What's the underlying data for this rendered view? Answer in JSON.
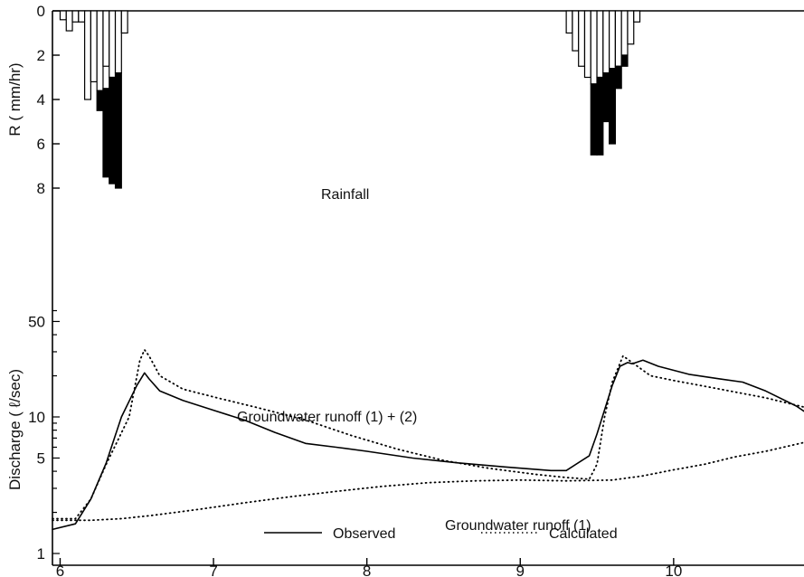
{
  "chart_data": [
    {
      "type": "bar",
      "panel": "rainfall",
      "ylabel": "R ( mm/hr)",
      "ylim": [
        0,
        8
      ],
      "y_inverted": true,
      "yticks": [
        0,
        2,
        4,
        6,
        8
      ],
      "annotation": "Rainfall",
      "bar_width_days": 0.04,
      "series": [
        {
          "style": "open",
          "bars": [
            {
              "x": 6.02,
              "value": 0.4
            },
            {
              "x": 6.06,
              "value": 0.9
            },
            {
              "x": 6.1,
              "value": 0.5
            },
            {
              "x": 6.14,
              "value": 0.5
            },
            {
              "x": 6.18,
              "value": 4.0
            },
            {
              "x": 6.22,
              "value": 3.2
            },
            {
              "x": 6.26,
              "value": 3.6
            },
            {
              "x": 6.3,
              "value": 2.5
            },
            {
              "x": 6.34,
              "value": 3.0
            },
            {
              "x": 6.38,
              "value": 2.8
            },
            {
              "x": 6.42,
              "value": 1.0
            },
            {
              "x": 9.32,
              "value": 1.0
            },
            {
              "x": 9.36,
              "value": 1.8
            },
            {
              "x": 9.4,
              "value": 2.5
            },
            {
              "x": 9.44,
              "value": 3.0
            },
            {
              "x": 9.48,
              "value": 3.3
            },
            {
              "x": 9.52,
              "value": 3.0
            },
            {
              "x": 9.56,
              "value": 2.8
            },
            {
              "x": 9.6,
              "value": 2.6
            },
            {
              "x": 9.64,
              "value": 2.5
            },
            {
              "x": 9.68,
              "value": 2.0
            },
            {
              "x": 9.72,
              "value": 1.5
            },
            {
              "x": 9.76,
              "value": 0.5
            }
          ]
        },
        {
          "style": "filled",
          "bars": [
            {
              "x": 6.26,
              "base": 3.6,
              "value": 4.5
            },
            {
              "x": 6.3,
              "base": 3.5,
              "value": 7.5
            },
            {
              "x": 6.34,
              "base": 3.0,
              "value": 7.8
            },
            {
              "x": 6.38,
              "base": 2.8,
              "value": 8.0
            },
            {
              "x": 9.48,
              "base": 3.3,
              "value": 6.5
            },
            {
              "x": 9.52,
              "base": 3.0,
              "value": 6.5
            },
            {
              "x": 9.56,
              "base": 2.8,
              "value": 5.0
            },
            {
              "x": 9.6,
              "base": 2.6,
              "value": 6.0
            },
            {
              "x": 9.64,
              "base": 2.5,
              "value": 3.5
            },
            {
              "x": 9.68,
              "base": 2.0,
              "value": 2.5
            }
          ]
        }
      ]
    },
    {
      "type": "line",
      "panel": "discharge",
      "ylabel": "Discharge  ( ℓ/sec)",
      "yscale": "log",
      "ylim": [
        1,
        100
      ],
      "yticks": [
        1,
        5,
        10,
        50
      ],
      "xlim": [
        5.95,
        10.85
      ],
      "xticks": [
        6,
        7,
        8,
        9,
        10
      ],
      "annotations": [
        "Groundwater runoff (1) + (2)",
        "Groundwater runoff (1)"
      ],
      "legend": {
        "position": "bottom-center",
        "entries": [
          "Observed",
          "Calculated"
        ]
      },
      "series": [
        {
          "name": "Observed",
          "style": "solid",
          "points": [
            [
              5.95,
              1.5
            ],
            [
              6.1,
              1.65
            ],
            [
              6.2,
              2.5
            ],
            [
              6.3,
              4.6
            ],
            [
              6.4,
              10
            ],
            [
              6.5,
              17
            ],
            [
              6.55,
              21
            ],
            [
              6.58,
              19
            ],
            [
              6.65,
              15.5
            ],
            [
              6.8,
              13.2
            ],
            [
              7.0,
              11.2
            ],
            [
              7.2,
              9.5
            ],
            [
              7.4,
              7.7
            ],
            [
              7.6,
              6.4
            ],
            [
              7.8,
              6.0
            ],
            [
              8.0,
              5.6
            ],
            [
              8.3,
              5.0
            ],
            [
              8.6,
              4.6
            ],
            [
              8.9,
              4.3
            ],
            [
              9.2,
              4.05
            ],
            [
              9.3,
              4.05
            ],
            [
              9.45,
              5.2
            ],
            [
              9.5,
              7.5
            ],
            [
              9.6,
              17
            ],
            [
              9.65,
              23.5
            ],
            [
              9.7,
              25
            ],
            [
              9.73,
              24.5
            ],
            [
              9.8,
              26
            ],
            [
              9.9,
              23.5
            ],
            [
              10.1,
              20.5
            ],
            [
              10.3,
              19
            ],
            [
              10.45,
              18
            ],
            [
              10.6,
              15.5
            ],
            [
              10.8,
              12
            ],
            [
              10.85,
              11
            ]
          ]
        },
        {
          "name": "Calculated",
          "label": "Groundwater runoff (1) + (2)",
          "style": "dotted",
          "points": [
            [
              5.95,
              1.8
            ],
            [
              6.1,
              1.8
            ],
            [
              6.2,
              2.5
            ],
            [
              6.3,
              4.5
            ],
            [
              6.45,
              10
            ],
            [
              6.52,
              26
            ],
            [
              6.55,
              31
            ],
            [
              6.58,
              28
            ],
            [
              6.65,
              20
            ],
            [
              6.8,
              16
            ],
            [
              7.0,
              14
            ],
            [
              7.3,
              11.6
            ],
            [
              7.6,
              9.5
            ],
            [
              7.9,
              7.3
            ],
            [
              8.2,
              5.8
            ],
            [
              8.5,
              4.8
            ],
            [
              8.8,
              4.2
            ],
            [
              9.1,
              3.8
            ],
            [
              9.3,
              3.6
            ],
            [
              9.45,
              3.5
            ],
            [
              9.5,
              4.5
            ],
            [
              9.55,
              10
            ],
            [
              9.6,
              18
            ],
            [
              9.67,
              28
            ],
            [
              9.73,
              25
            ],
            [
              9.85,
              20
            ],
            [
              10.0,
              18.5
            ],
            [
              10.3,
              16
            ],
            [
              10.6,
              13.8
            ],
            [
              10.85,
              11.8
            ]
          ]
        },
        {
          "name": "Calculated",
          "label": "Groundwater runoff (1)",
          "style": "dotted",
          "points": [
            [
              5.95,
              1.75
            ],
            [
              6.2,
              1.75
            ],
            [
              6.4,
              1.8
            ],
            [
              6.6,
              1.9
            ],
            [
              6.9,
              2.1
            ],
            [
              7.2,
              2.35
            ],
            [
              7.5,
              2.6
            ],
            [
              7.8,
              2.85
            ],
            [
              8.1,
              3.1
            ],
            [
              8.4,
              3.3
            ],
            [
              8.7,
              3.4
            ],
            [
              9.0,
              3.45
            ],
            [
              9.3,
              3.4
            ],
            [
              9.6,
              3.45
            ],
            [
              9.8,
              3.7
            ],
            [
              10.0,
              4.1
            ],
            [
              10.2,
              4.5
            ],
            [
              10.4,
              5.1
            ],
            [
              10.6,
              5.6
            ],
            [
              10.85,
              6.5
            ]
          ]
        }
      ]
    }
  ]
}
